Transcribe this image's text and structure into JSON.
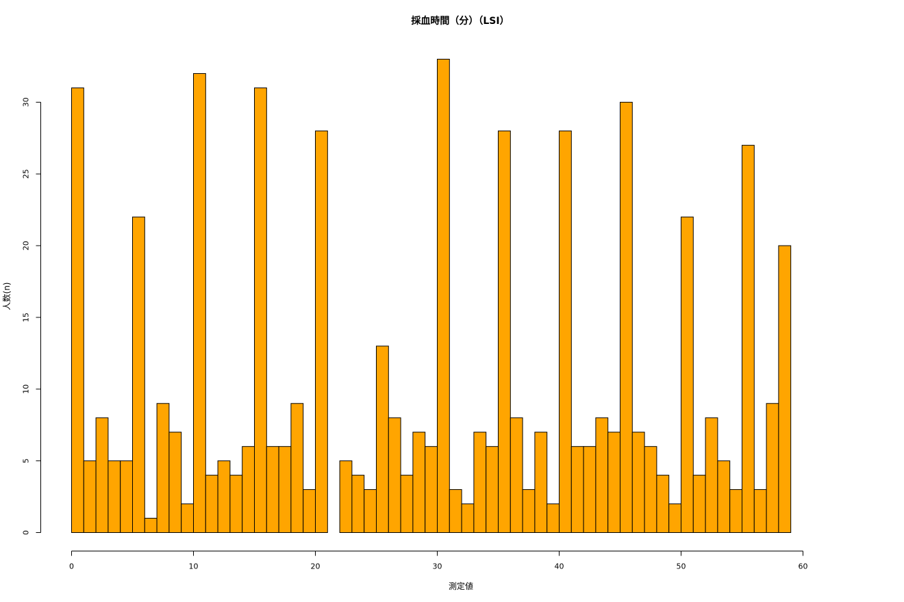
{
  "chart_data": {
    "type": "bar",
    "title": "採血時間（分）（LSI）",
    "xlabel": "測定値",
    "ylabel": "人数(n)",
    "bar_color": "#FFA500",
    "bin_width": 1,
    "x_start": 0,
    "xlim": [
      0,
      60
    ],
    "ylim": [
      0,
      33
    ],
    "x_ticks": [
      0,
      10,
      20,
      30,
      40,
      50,
      60
    ],
    "y_ticks": [
      0,
      5,
      10,
      15,
      20,
      25,
      30
    ],
    "values": [
      31,
      5,
      8,
      5,
      5,
      22,
      1,
      9,
      7,
      2,
      32,
      4,
      5,
      4,
      6,
      31,
      6,
      6,
      9,
      3,
      28,
      0,
      5,
      4,
      3,
      13,
      8,
      4,
      7,
      6,
      33,
      3,
      2,
      7,
      6,
      28,
      8,
      3,
      7,
      2,
      28,
      6,
      6,
      8,
      7,
      30,
      7,
      6,
      4,
      2,
      22,
      4,
      8,
      5,
      3,
      27,
      3,
      9,
      20
    ]
  }
}
